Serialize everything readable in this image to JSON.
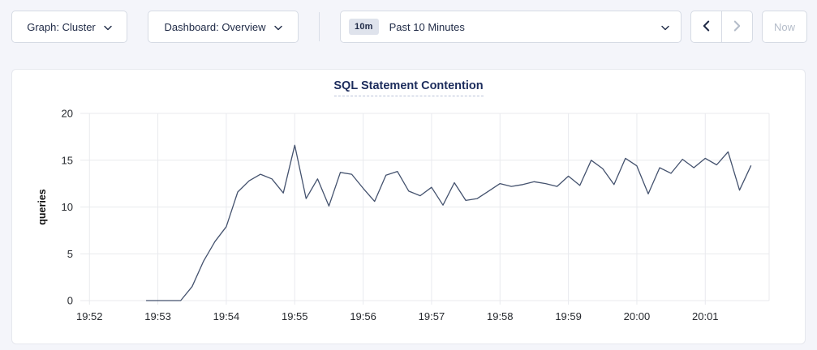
{
  "toolbar": {
    "graph_dropdown": {
      "label": "Graph: Cluster"
    },
    "dashboard_dropdown": {
      "label": "Dashboard: Overview"
    },
    "time_selector": {
      "badge": "10m",
      "label": "Past 10 Minutes"
    },
    "now_button_label": "Now"
  },
  "colors": {
    "page_bg": "#f4f5fa",
    "card_bg": "#ffffff",
    "border": "#d6dbe4",
    "text_primary": "#1f2a46",
    "title_navy": "#1c2c5c",
    "disabled": "#b4bcc9",
    "badge_bg": "#dfe3ec",
    "grid": "#e9eaee",
    "axis_text": "#26292e",
    "line": "#44526e"
  },
  "chart_data": {
    "type": "line",
    "title": "SQL Statement Contention",
    "xlabel": "",
    "ylabel": "queries",
    "ylim": [
      0,
      20
    ],
    "y_ticks": [
      0,
      5,
      10,
      15,
      20
    ],
    "x_ticks": [
      "19:52",
      "19:53",
      "19:54",
      "19:55",
      "19:56",
      "19:57",
      "19:58",
      "19:59",
      "20:00",
      "20:01"
    ],
    "x_range": [
      "19:51:52",
      "20:01:56"
    ],
    "grid": true,
    "legend_position": "none",
    "series": [
      {
        "name": "queries",
        "color": "#44526e",
        "points": [
          [
            "19:52:50",
            0
          ],
          [
            "19:53:00",
            0
          ],
          [
            "19:53:10",
            0
          ],
          [
            "19:53:20",
            0
          ],
          [
            "19:53:30",
            1.5
          ],
          [
            "19:53:40",
            4.2
          ],
          [
            "19:53:50",
            6.3
          ],
          [
            "19:54:00",
            7.9
          ],
          [
            "19:54:10",
            11.6
          ],
          [
            "19:54:20",
            12.8
          ],
          [
            "19:54:30",
            13.5
          ],
          [
            "19:54:40",
            13.0
          ],
          [
            "19:54:50",
            11.5
          ],
          [
            "19:55:00",
            16.6
          ],
          [
            "19:55:10",
            10.9
          ],
          [
            "19:55:20",
            13.0
          ],
          [
            "19:55:30",
            10.1
          ],
          [
            "19:55:40",
            13.7
          ],
          [
            "19:55:50",
            13.5
          ],
          [
            "19:56:00",
            12.0
          ],
          [
            "19:56:10",
            10.6
          ],
          [
            "19:56:20",
            13.4
          ],
          [
            "19:56:30",
            13.8
          ],
          [
            "19:56:40",
            11.7
          ],
          [
            "19:56:50",
            11.2
          ],
          [
            "19:57:00",
            12.1
          ],
          [
            "19:57:10",
            10.2
          ],
          [
            "19:57:20",
            12.6
          ],
          [
            "19:57:30",
            10.7
          ],
          [
            "19:57:40",
            10.9
          ],
          [
            "19:57:50",
            11.7
          ],
          [
            "19:58:00",
            12.5
          ],
          [
            "19:58:10",
            12.2
          ],
          [
            "19:58:20",
            12.4
          ],
          [
            "19:58:30",
            12.7
          ],
          [
            "19:58:40",
            12.5
          ],
          [
            "19:58:50",
            12.2
          ],
          [
            "19:59:00",
            13.3
          ],
          [
            "19:59:10",
            12.3
          ],
          [
            "19:59:20",
            15.0
          ],
          [
            "19:59:30",
            14.1
          ],
          [
            "19:59:40",
            12.4
          ],
          [
            "19:59:50",
            15.2
          ],
          [
            "20:00:00",
            14.4
          ],
          [
            "20:00:10",
            11.4
          ],
          [
            "20:00:20",
            14.2
          ],
          [
            "20:00:30",
            13.6
          ],
          [
            "20:00:40",
            15.1
          ],
          [
            "20:00:50",
            14.2
          ],
          [
            "20:01:00",
            15.2
          ],
          [
            "20:01:10",
            14.5
          ],
          [
            "20:01:20",
            15.9
          ],
          [
            "20:01:30",
            11.8
          ],
          [
            "20:01:40",
            14.4
          ]
        ]
      }
    ]
  }
}
